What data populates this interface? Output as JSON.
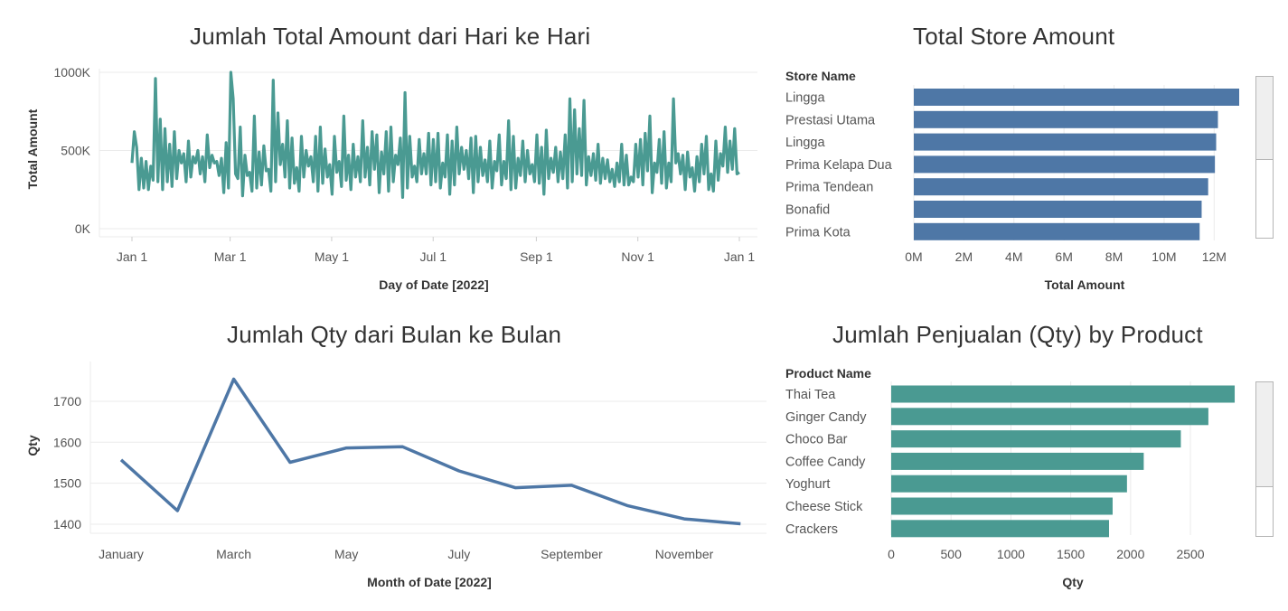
{
  "colors": {
    "teal": "#4a9a92",
    "blue": "#4e77a6",
    "grid": "#ebebeb",
    "text": "#555555"
  },
  "chart_data": [
    {
      "id": "daily",
      "type": "line",
      "title": "Jumlah Total Amount dari Hari ke Hari",
      "xlabel": "Day of Date [2022]",
      "ylabel": "Total Amount",
      "xticks": [
        "Jan 1",
        "Mar 1",
        "May 1",
        "Jul 1",
        "Sep 1",
        "Nov 1",
        "Jan 1"
      ],
      "yticks": [
        "0K",
        "500K",
        "1000K"
      ],
      "ylim": [
        0,
        1000000
      ],
      "x_range": [
        "2022-01-01",
        "2023-01-01"
      ],
      "color": "#4a9a92",
      "series": [
        {
          "values": [
            420000,
            620000,
            520000,
            250000,
            450000,
            260000,
            430000,
            250000,
            400000,
            310000,
            960000,
            300000,
            700000,
            250000,
            640000,
            300000,
            540000,
            270000,
            620000,
            320000,
            500000,
            420000,
            480000,
            300000,
            560000,
            330000,
            460000,
            420000,
            500000,
            350000,
            460000,
            300000,
            600000,
            390000,
            470000,
            420000,
            430000,
            340000,
            450000,
            230000,
            550000,
            260000,
            1000000,
            830000,
            350000,
            320000,
            650000,
            210000,
            470000,
            340000,
            360000,
            240000,
            720000,
            260000,
            490000,
            280000,
            530000,
            370000,
            380000,
            240000,
            950000,
            300000,
            740000,
            410000,
            540000,
            330000,
            690000,
            260000,
            580000,
            290000,
            390000,
            240000,
            590000,
            330000,
            500000,
            400000,
            460000,
            300000,
            590000,
            240000,
            650000,
            290000,
            510000,
            330000,
            410000,
            220000,
            590000,
            360000,
            430000,
            270000,
            720000,
            310000,
            470000,
            250000,
            540000,
            330000,
            460000,
            300000,
            690000,
            330000,
            520000,
            280000,
            620000,
            380000,
            600000,
            230000,
            490000,
            350000,
            620000,
            240000,
            650000,
            300000,
            470000,
            410000,
            580000,
            200000,
            870000,
            260000,
            590000,
            330000,
            400000,
            300000,
            570000,
            350000,
            480000,
            350000,
            610000,
            280000,
            570000,
            300000,
            610000,
            260000,
            420000,
            330000,
            600000,
            220000,
            560000,
            280000,
            650000,
            350000,
            520000,
            380000,
            500000,
            320000,
            580000,
            230000,
            590000,
            300000,
            520000,
            340000,
            440000,
            300000,
            560000,
            260000,
            430000,
            370000,
            600000,
            280000,
            430000,
            320000,
            690000,
            250000,
            590000,
            260000,
            450000,
            340000,
            560000,
            300000,
            500000,
            350000,
            410000,
            300000,
            600000,
            290000,
            520000,
            220000,
            630000,
            320000,
            450000,
            360000,
            520000,
            300000,
            490000,
            320000,
            600000,
            260000,
            830000,
            300000,
            760000,
            350000,
            640000,
            340000,
            820000,
            280000,
            460000,
            340000,
            480000,
            310000,
            540000,
            290000,
            450000,
            320000,
            440000,
            300000,
            380000,
            270000,
            420000,
            300000,
            540000,
            280000,
            470000,
            280000,
            330000,
            300000,
            540000,
            330000,
            570000,
            280000,
            610000,
            370000,
            720000,
            230000,
            420000,
            360000,
            570000,
            290000,
            620000,
            260000,
            420000,
            300000,
            830000,
            420000,
            480000,
            350000,
            470000,
            250000,
            490000,
            330000,
            390000,
            240000,
            460000,
            300000,
            540000,
            350000,
            590000,
            250000,
            350000,
            240000,
            560000,
            310000,
            480000,
            400000,
            650000,
            360000,
            560000,
            380000,
            640000,
            350000,
            360000
          ]
        }
      ]
    },
    {
      "id": "store",
      "type": "bar",
      "orientation": "horizontal",
      "title": "Total Store Amount",
      "row_header": "Store Name",
      "xlabel": "Total Amount",
      "xticks": [
        "0M",
        "2M",
        "4M",
        "6M",
        "8M",
        "10M",
        "12M"
      ],
      "xlim": [
        0,
        13000000
      ],
      "color": "#4e77a6",
      "categories": [
        "Lingga",
        "Prestasi Utama",
        "Lingga",
        "Prima Kelapa Dua",
        "Prima Tendean",
        "Bonafid",
        "Prima Kota"
      ],
      "values": [
        13000000,
        12150000,
        12080000,
        12030000,
        11760000,
        11500000,
        11420000
      ]
    },
    {
      "id": "monthly",
      "type": "line",
      "title": "Jumlah Qty dari Bulan ke Bulan",
      "xlabel": "Month of Date [2022]",
      "ylabel": "Qty",
      "xticks": [
        "January",
        "March",
        "May",
        "July",
        "September",
        "November"
      ],
      "yticks": [
        "1400",
        "1500",
        "1600",
        "1700"
      ],
      "ylim": [
        1390,
        1780
      ],
      "color": "#4e77a6",
      "categories": [
        "January",
        "February",
        "March",
        "April",
        "May",
        "June",
        "July",
        "August",
        "September",
        "October",
        "November",
        "December"
      ],
      "values": [
        1557,
        1433,
        1754,
        1551,
        1586,
        1589,
        1530,
        1489,
        1495,
        1445,
        1413,
        1401
      ]
    },
    {
      "id": "product",
      "type": "bar",
      "orientation": "horizontal",
      "title": "Jumlah Penjualan (Qty) by Product",
      "row_header": "Product Name",
      "xlabel": "Qty",
      "xticks": [
        "0",
        "500",
        "1000",
        "1500",
        "2000",
        "2500"
      ],
      "xlim": [
        0,
        2900
      ],
      "color": "#4a9a92",
      "categories": [
        "Thai Tea",
        "Ginger Candy",
        "Choco Bar",
        "Coffee Candy",
        "Yoghurt",
        "Cheese Stick",
        "Crackers"
      ],
      "values": [
        2870,
        2650,
        2420,
        2110,
        1970,
        1850,
        1820
      ]
    }
  ]
}
